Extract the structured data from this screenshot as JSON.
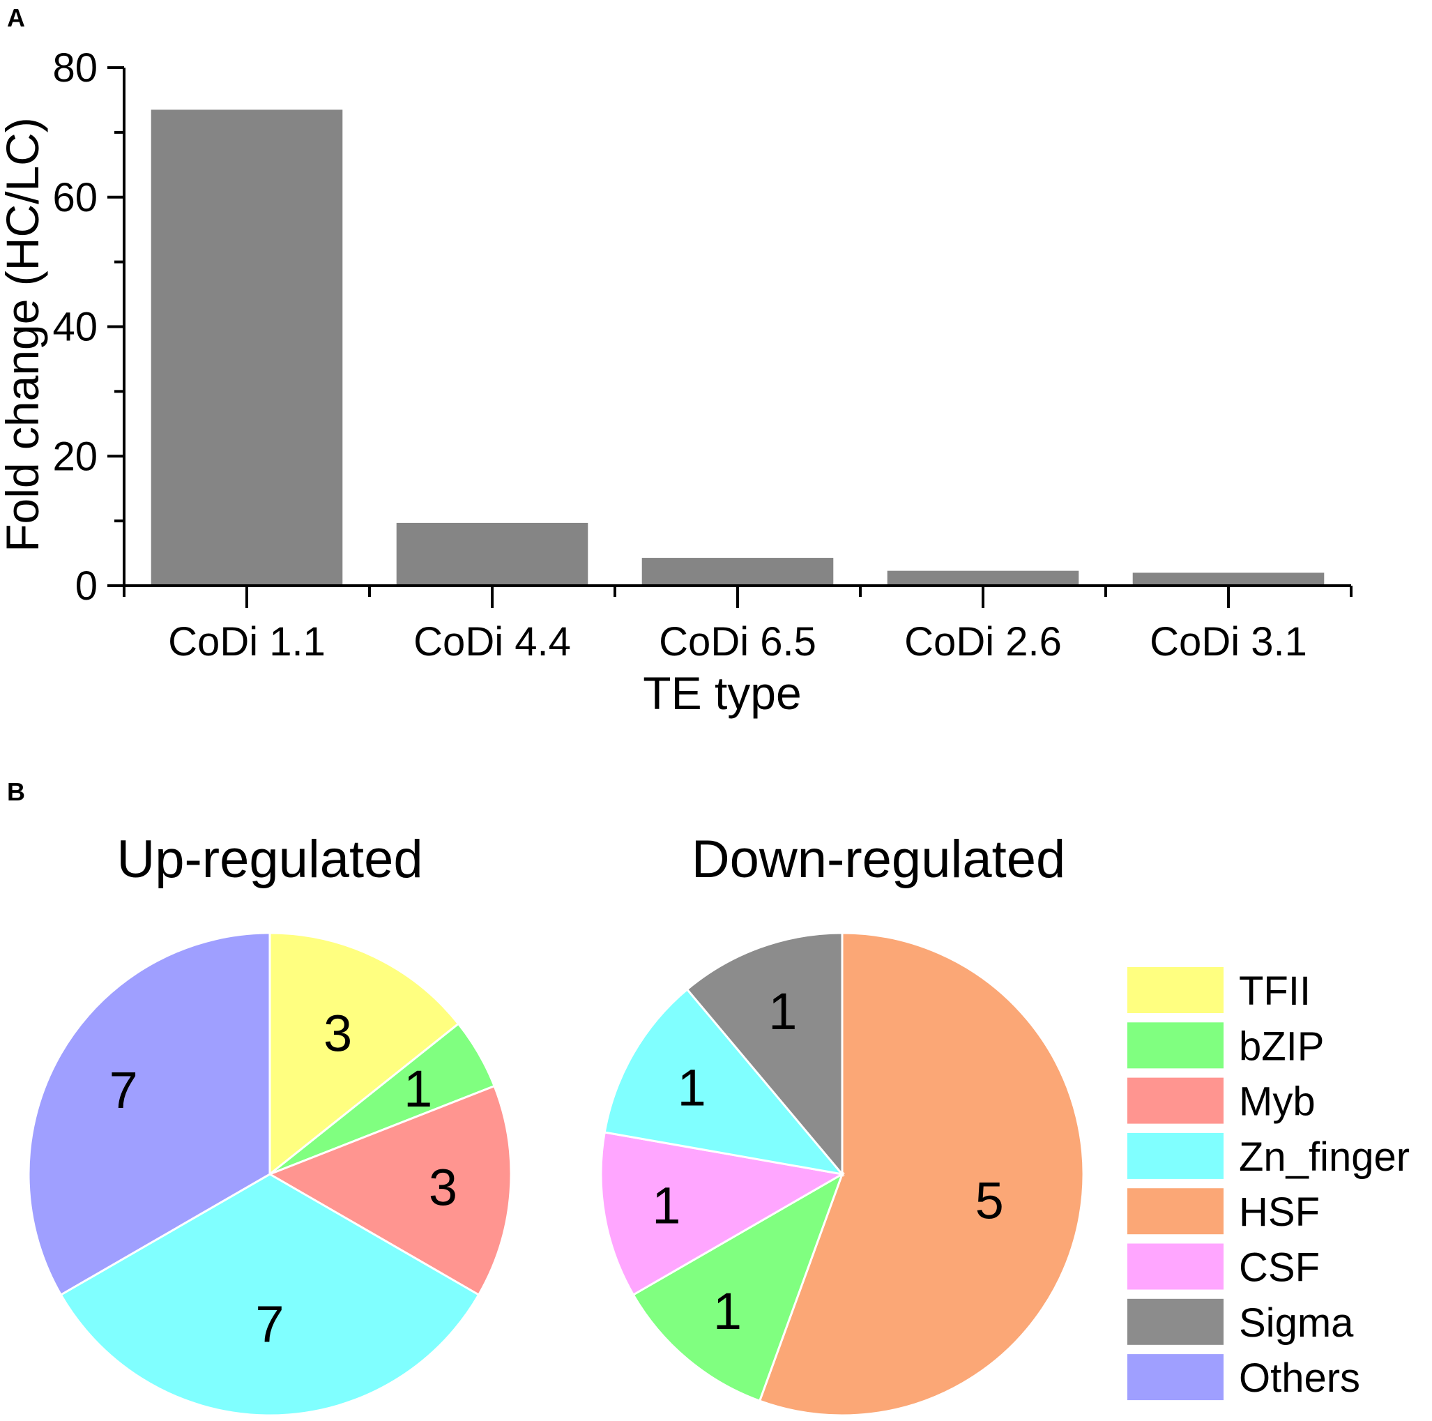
{
  "panel_a": {
    "label": "A"
  },
  "panel_b": {
    "label": "B"
  },
  "chart_data": [
    {
      "type": "bar",
      "title": "",
      "xlabel": "TE type",
      "ylabel": "Fold change (HC/LC)",
      "categories": [
        "CoDi 1.1",
        "CoDi 4.4",
        "CoDi 6.5",
        "CoDi 2.6",
        "CoDi 3.1"
      ],
      "values": [
        73.5,
        9.7,
        4.3,
        2.3,
        2.0
      ],
      "ylim": [
        0,
        80
      ],
      "yticks": [
        "0",
        "20",
        "40",
        "60",
        "80"
      ],
      "bar_color": "#858585",
      "grid": false
    },
    {
      "type": "pie",
      "title": "Up-regulated",
      "slices": [
        {
          "name": "TFII",
          "value": 3,
          "label": "3",
          "color": "#ffff80"
        },
        {
          "name": "bZIP",
          "value": 1,
          "label": "1",
          "color": "#80ff80"
        },
        {
          "name": "Myb",
          "value": 3,
          "label": "3",
          "color": "#ff9590"
        },
        {
          "name": "Zn_finger",
          "value": 7,
          "label": "7",
          "color": "#80ffff"
        },
        {
          "name": "Others",
          "value": 7,
          "label": "7",
          "color": "#9f9fff"
        }
      ]
    },
    {
      "type": "pie",
      "title": "Down-regulated",
      "slices": [
        {
          "name": "HSF",
          "value": 5,
          "label": "5",
          "color": "#fba776"
        },
        {
          "name": "bZIP",
          "value": 1,
          "label": "1",
          "color": "#80ff80"
        },
        {
          "name": "CSF",
          "value": 1,
          "label": "1",
          "color": "#ffa6ff"
        },
        {
          "name": "Zn_finger",
          "value": 1,
          "label": "1",
          "color": "#80ffff"
        },
        {
          "name": "Sigma",
          "value": 1,
          "label": "1",
          "color": "#8c8c8c"
        }
      ]
    }
  ],
  "legend": {
    "position": "right",
    "items": [
      {
        "name": "TFII",
        "color": "#ffff80"
      },
      {
        "name": "bZIP",
        "color": "#80ff80"
      },
      {
        "name": "Myb",
        "color": "#ff9590"
      },
      {
        "name": "Zn_finger",
        "color": "#80ffff"
      },
      {
        "name": "HSF",
        "color": "#fba776"
      },
      {
        "name": "CSF",
        "color": "#ffa6ff"
      },
      {
        "name": "Sigma",
        "color": "#8c8c8c"
      },
      {
        "name": "Others",
        "color": "#9f9fff"
      }
    ]
  }
}
